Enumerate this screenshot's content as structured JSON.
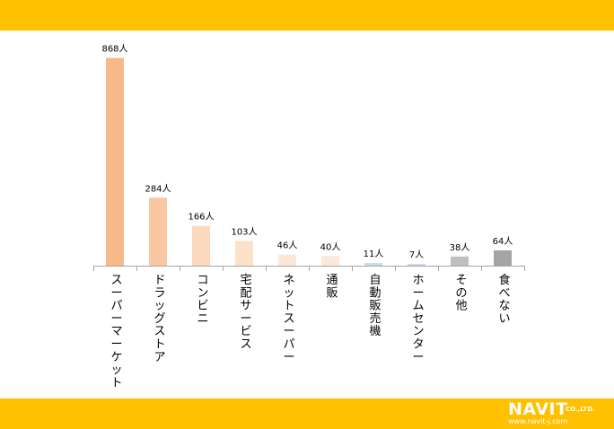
{
  "chart_data": {
    "type": "bar",
    "categories": [
      "スーパーマーケット",
      "ドラッグストア",
      "コンビニ",
      "宅配サービス",
      "ネットスーパー",
      "通販",
      "自動販売機",
      "ホームセンター",
      "その他",
      "食べない"
    ],
    "values": [
      868,
      284,
      166,
      103,
      46,
      40,
      11,
      7,
      38,
      64
    ],
    "value_labels": [
      "868人",
      "284人",
      "166人",
      "103人",
      "46人",
      "40人",
      "11人",
      "7人",
      "38人",
      "64人"
    ],
    "colors": [
      "#F9B88A",
      "#F9C8A2",
      "#FCD9BE",
      "#FCE1CB",
      "#FDE7D6",
      "#FDE9D9",
      "#C5D9F1",
      "#C5D9F1",
      "#BFBFBF",
      "#A5A5A5"
    ],
    "ylim": [
      0,
      900
    ],
    "grid": false,
    "legend": "none",
    "title": "",
    "xlabel": "",
    "ylabel": ""
  },
  "logo": {
    "main": "NAVIT",
    "suffix": "CO.,LTD.",
    "url": "www.navit-j.com"
  },
  "colors": {
    "band": "#FFC000",
    "axis": "#A6A6A6",
    "label_text": "#000000"
  }
}
